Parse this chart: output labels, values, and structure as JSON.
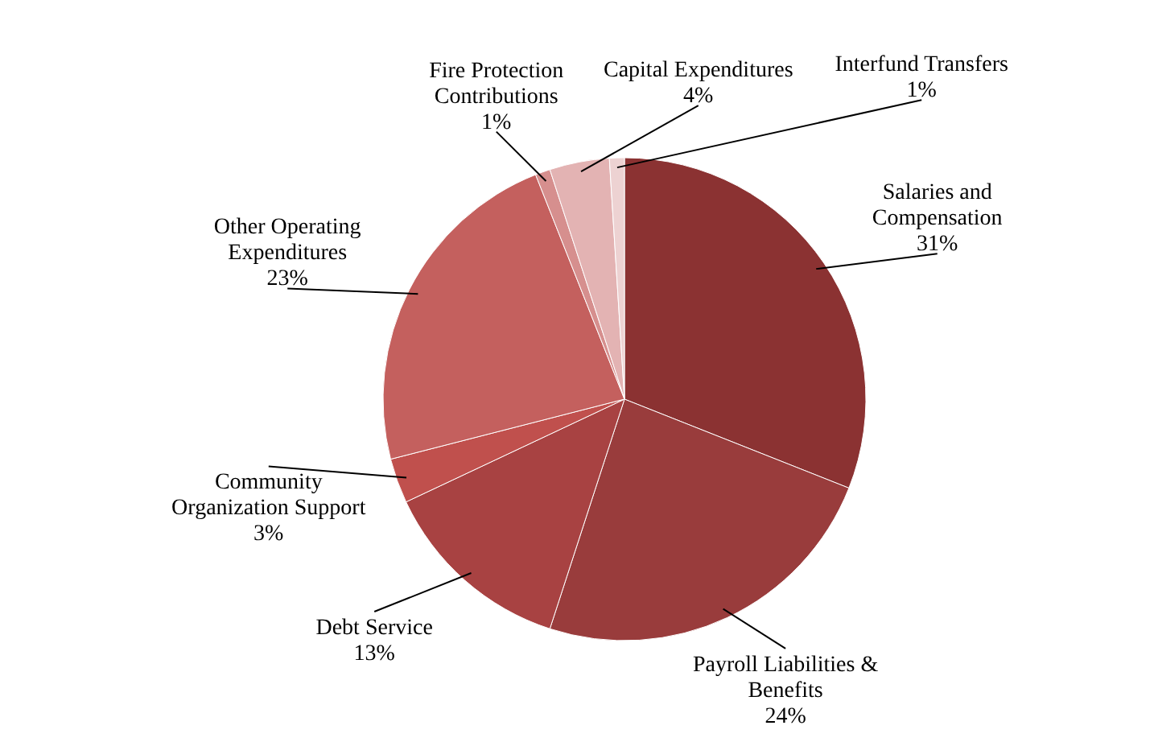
{
  "chart_data": {
    "type": "pie",
    "categories": [
      "Salaries and Compensation",
      "Payroll Liabilities & Benefits",
      "Debt Service",
      "Community Organization Support",
      "Other Operating Expenditures",
      "Fire Protection Contributions",
      "Capital Expenditures",
      "Interfund Transfers"
    ],
    "values": [
      31,
      24,
      13,
      3,
      23,
      1,
      4,
      1
    ],
    "value_labels": [
      "31%",
      "24%",
      "13%",
      "3%",
      "23%",
      "1%",
      "4%",
      "1%"
    ],
    "colors": [
      "#8b3232",
      "#993c3c",
      "#a84242",
      "#c0504d",
      "#c4605e",
      "#d68f8e",
      "#e3b3b3",
      "#edd2d2"
    ]
  }
}
